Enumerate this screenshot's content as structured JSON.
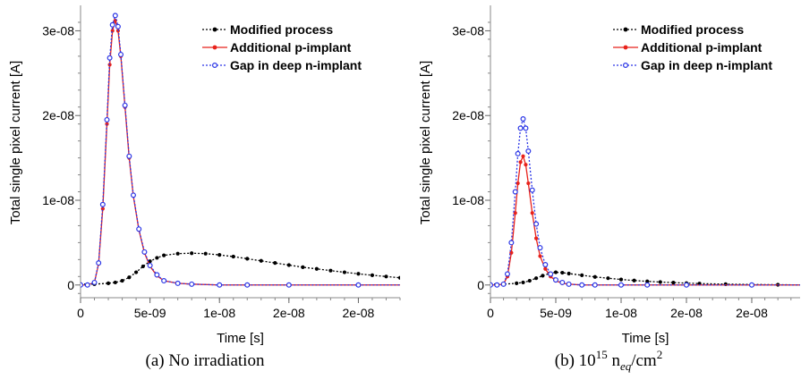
{
  "captions": {
    "left": "(a) No irradiation",
    "right_prefix": "(b) 10",
    "right_exp": "15",
    "right_n": " n",
    "right_sub": "eq",
    "right_unit": "/cm",
    "right_unit_exp": "2"
  },
  "colors": {
    "modified": "#000000",
    "additional": "#e8221b",
    "gap": "#2a35e6"
  },
  "chart_data": [
    {
      "type": "line",
      "xlabel": "Time [s]",
      "ylabel": "Total single pixel current [A]",
      "xlim": [
        0,
        2.5e-08
      ],
      "ylim": [
        -1.5e-09,
        3.3e-08
      ],
      "x_ticks": [
        {
          "value": 0,
          "label": "0"
        },
        {
          "value": 5e-09,
          "label": "5e-09"
        },
        {
          "value": 1e-08,
          "label": "1e-08"
        },
        {
          "value": 1.5e-08,
          "label": "2e-08"
        },
        {
          "value": 2e-08,
          "label": "2e-08"
        }
      ],
      "y_ticks": [
        {
          "value": 0,
          "label": "0"
        },
        {
          "value": 1e-08,
          "label": "1e-08"
        },
        {
          "value": 2e-08,
          "label": "2e-08"
        },
        {
          "value": 3e-08,
          "label": "3e-08"
        }
      ],
      "legend": "top-right",
      "series": [
        {
          "name": "Modified process",
          "key": "modified",
          "x": [
            0,
            1e-09,
            2e-09,
            2.5e-09,
            3e-09,
            3.5e-09,
            4e-09,
            4.5e-09,
            5e-09,
            5.5e-09,
            6e-09,
            7e-09,
            8e-09,
            9e-09,
            1e-08,
            1.1e-08,
            1.2e-08,
            1.3e-08,
            1.4e-08,
            1.5e-08,
            1.6e-08,
            1.7e-08,
            1.8e-08,
            1.9e-08,
            2e-08,
            2.1e-08,
            2.2e-08,
            2.3e-08,
            2.4e-08,
            2.5e-08
          ],
          "values": [
            1e-10,
            1e-10,
            2e-10,
            3e-10,
            5e-10,
            9e-10,
            1.5e-09,
            2.2e-09,
            2.8e-09,
            3.2e-09,
            3.5e-09,
            3.7e-09,
            3.75e-09,
            3.7e-09,
            3.55e-09,
            3.35e-09,
            3.1e-09,
            2.85e-09,
            2.6e-09,
            2.35e-09,
            2.1e-09,
            1.9e-09,
            1.7e-09,
            1.5e-09,
            1.32e-09,
            1.15e-09,
            1e-09,
            8.5e-10,
            7e-10,
            6e-10
          ]
        },
        {
          "name": "Additional p-implant",
          "key": "additional",
          "x": [
            0,
            5e-10,
            1e-09,
            1.3e-09,
            1.6e-09,
            1.9e-09,
            2.1e-09,
            2.3e-09,
            2.5e-09,
            2.7e-09,
            2.9e-09,
            3.2e-09,
            3.5e-09,
            3.8e-09,
            4.2e-09,
            4.6e-09,
            5e-09,
            5.5e-09,
            6e-09,
            7e-09,
            8e-09,
            1e-08,
            1.2e-08,
            1.5e-08,
            2e-08,
            2.5e-08
          ],
          "values": [
            0,
            0,
            3e-10,
            2.5e-09,
            9e-09,
            1.9e-08,
            2.6e-08,
            3e-08,
            3.12e-08,
            3e-08,
            2.7e-08,
            2.1e-08,
            1.5e-08,
            1.05e-08,
            6.5e-09,
            3.8e-09,
            2.2e-09,
            1.1e-09,
            5e-10,
            2e-10,
            1e-10,
            0,
            0,
            0,
            0,
            0
          ]
        },
        {
          "name": "Gap in deep n-implant",
          "key": "gap",
          "x": [
            0,
            5e-10,
            1e-09,
            1.3e-09,
            1.6e-09,
            1.9e-09,
            2.1e-09,
            2.3e-09,
            2.5e-09,
            2.7e-09,
            2.9e-09,
            3.2e-09,
            3.5e-09,
            3.8e-09,
            4.2e-09,
            4.6e-09,
            5e-09,
            5.5e-09,
            6e-09,
            7e-09,
            8e-09,
            1e-08,
            1.2e-08,
            1.5e-08,
            2e-08,
            2.5e-08
          ],
          "values": [
            0,
            0,
            3e-10,
            2.6e-09,
            9.5e-09,
            1.95e-08,
            2.68e-08,
            3.07e-08,
            3.18e-08,
            3.05e-08,
            2.72e-08,
            2.12e-08,
            1.52e-08,
            1.06e-08,
            6.6e-09,
            3.9e-09,
            2.3e-09,
            1.2e-09,
            5e-10,
            2e-10,
            1e-10,
            0,
            0,
            0,
            0,
            0
          ]
        }
      ]
    },
    {
      "type": "line",
      "xlabel": "Time [s]",
      "ylabel": "Total single pixel current [A]",
      "xlim": [
        0,
        2.5e-08
      ],
      "ylim": [
        -1.5e-09,
        3.3e-08
      ],
      "x_ticks": [
        {
          "value": 0,
          "label": "0"
        },
        {
          "value": 5e-09,
          "label": "5e-09"
        },
        {
          "value": 1e-08,
          "label": "1e-08"
        },
        {
          "value": 1.5e-08,
          "label": "2e-08"
        },
        {
          "value": 2e-08,
          "label": "2e-08"
        },
        {
          "value": 2.5e-08,
          "label": "2e-08"
        }
      ],
      "y_ticks": [
        {
          "value": 0,
          "label": "0"
        },
        {
          "value": 1e-08,
          "label": "1e-08"
        },
        {
          "value": 2e-08,
          "label": "2e-08"
        },
        {
          "value": 3e-08,
          "label": "3e-08"
        }
      ],
      "legend": "top-right",
      "series": [
        {
          "name": "Modified process",
          "key": "modified",
          "x": [
            0,
            1e-09,
            2e-09,
            2.5e-09,
            3e-09,
            3.5e-09,
            4e-09,
            4.5e-09,
            5e-09,
            5.5e-09,
            6e-09,
            7e-09,
            8e-09,
            9e-09,
            1e-08,
            1.1e-08,
            1.2e-08,
            1.3e-08,
            1.4e-08,
            1.5e-08,
            1.6e-08,
            1.8e-08,
            2e-08,
            2.2e-08,
            2.4e-08
          ],
          "values": [
            1e-10,
            1e-10,
            2e-10,
            3e-10,
            5e-10,
            8e-10,
            1.1e-09,
            1.35e-09,
            1.5e-09,
            1.45e-09,
            1.35e-09,
            1.15e-09,
            9.5e-10,
            8e-10,
            6.5e-10,
            5.3e-10,
            4.3e-10,
            3.5e-10,
            2.8e-10,
            2.2e-10,
            1.7e-10,
            1e-10,
            6e-11,
            3e-11,
            1e-11
          ]
        },
        {
          "name": "Additional p-implant",
          "key": "additional",
          "x": [
            0,
            5e-10,
            1e-09,
            1.3e-09,
            1.6e-09,
            1.9e-09,
            2.1e-09,
            2.3e-09,
            2.5e-09,
            2.7e-09,
            2.9e-09,
            3.2e-09,
            3.5e-09,
            3.8e-09,
            4.2e-09,
            4.6e-09,
            5e-09,
            5.5e-09,
            6e-09,
            7e-09,
            8e-09,
            1e-08,
            1.2e-08,
            1.5e-08,
            2e-08,
            2.5e-08
          ],
          "values": [
            0,
            0,
            1e-10,
            1e-09,
            3.8e-09,
            8.5e-09,
            1.2e-08,
            1.45e-08,
            1.52e-08,
            1.42e-08,
            1.2e-08,
            8.5e-09,
            5.5e-09,
            3.4e-09,
            1.9e-09,
            1e-09,
            5e-10,
            2e-10,
            1e-10,
            0,
            0,
            0,
            0,
            0,
            0,
            0
          ]
        },
        {
          "name": "Gap in deep n-implant",
          "key": "gap",
          "x": [
            0,
            5e-10,
            1e-09,
            1.3e-09,
            1.6e-09,
            1.9e-09,
            2.1e-09,
            2.3e-09,
            2.5e-09,
            2.7e-09,
            2.9e-09,
            3.2e-09,
            3.5e-09,
            3.8e-09,
            4.2e-09,
            4.6e-09,
            5e-09,
            5.5e-09,
            6e-09,
            7e-09,
            8e-09,
            1e-08,
            1.2e-08,
            1.5e-08,
            2e-08,
            2.5e-08
          ],
          "values": [
            0,
            0,
            1e-10,
            1.3e-09,
            5e-09,
            1.1e-08,
            1.55e-08,
            1.85e-08,
            1.96e-08,
            1.85e-08,
            1.58e-08,
            1.12e-08,
            7.2e-09,
            4.4e-09,
            2.4e-09,
            1.3e-09,
            6e-10,
            3e-10,
            1e-10,
            0,
            0,
            0,
            0,
            0,
            0,
            0
          ]
        }
      ]
    }
  ]
}
